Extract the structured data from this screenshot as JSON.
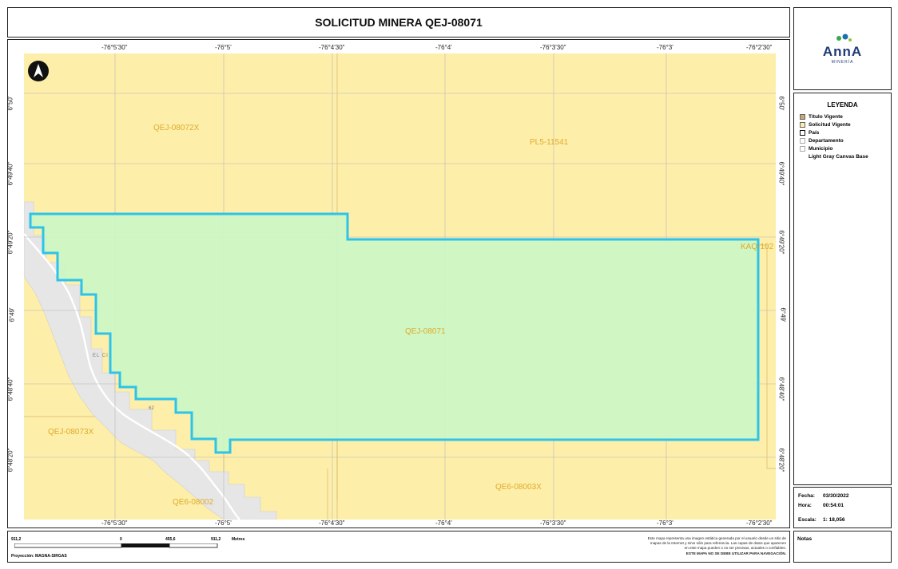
{
  "title": "SOLICITUD MINERA QEJ-08071",
  "logo": {
    "text": "AnnA",
    "subtext": "MINERÍA"
  },
  "map": {
    "lon_labels_top": [
      "-76°5'30\"",
      "-76°5'",
      "-76°4'30\"",
      "-76°4'",
      "-76°3'30\"",
      "-76°3'",
      "-76°2'30\""
    ],
    "lon_labels_bottom": [
      "-76°5'30\"",
      "-76°5'",
      "-76°4'30\"",
      "-76°4'",
      "-76°3'30\"",
      "-76°3'",
      "-76°2'30\""
    ],
    "lat_labels_left": [
      "6°50'",
      "6°49'40\"",
      "6°49'20\"",
      "6°49'",
      "6°48'40\"",
      "6°48'20\""
    ],
    "lat_labels_right": [
      "6°50'",
      "6°49'40\"",
      "6°49'20\"",
      "6°49'",
      "6°48'40\"",
      "6°48'20\""
    ],
    "north_arrow": "north-arrow-icon",
    "features": {
      "qej_08072x": "QEJ-08072X",
      "pl5_11541": "PL5-11541",
      "kaq": "KAQ-102",
      "qej_08071": "QEJ-08071",
      "qej_08073x": "QEJ-08073X",
      "qe6_08003x": "QE6-08003X",
      "qe6_08002": "QE6-08002",
      "road_label": "62",
      "town_label": "EL CI"
    },
    "colors": {
      "solicitud": "#fdeeaa",
      "titulo": "#c8a77a",
      "polygon_fill": "#ccf5c4",
      "polygon_stroke": "#2cc4ea",
      "gray_area": "#e6e6e6"
    }
  },
  "legend": {
    "title": "LEYENDA",
    "items": [
      {
        "label": "Título Vigente",
        "swatch": "#c8a77a"
      },
      {
        "label": "Solicitud Vigente",
        "swatch": "#fdeeaa"
      },
      {
        "label": "País",
        "swatch": "#ffffff"
      },
      {
        "label": "Departamento",
        "swatch": "#ffffff"
      },
      {
        "label": "Municipio",
        "swatch": "#ffffff"
      },
      {
        "label": "Light Gray Canvas Base",
        "swatch": ""
      }
    ]
  },
  "info": {
    "fecha_label": "Fecha:",
    "fecha_value": "03/30/2022",
    "hora_label": "Hora:",
    "hora_value": "00:54:01",
    "escala_label": "Escala:",
    "escala_value": "1: 18,056"
  },
  "scalebar": {
    "left": "911,2",
    "zero": "0",
    "mid": "455,6",
    "right": "911,2",
    "unit": "Metros",
    "projection": "Proyección: MAGNA-SIRGAS"
  },
  "disclaimer": {
    "lines": [
      "Este mapa representa una imagen estática generada por el usuario desde un sitio de",
      "mapas de la Internet y sirve sólo para referencia. Las capas de datos que aparecen",
      "en este mapa pueden o no ser precisas, actuales o confiables.",
      "ESTE MAPA NO SE DEBE UTILIZAR PARA NAVEGACIÓN."
    ]
  },
  "notas_label": "Notas"
}
